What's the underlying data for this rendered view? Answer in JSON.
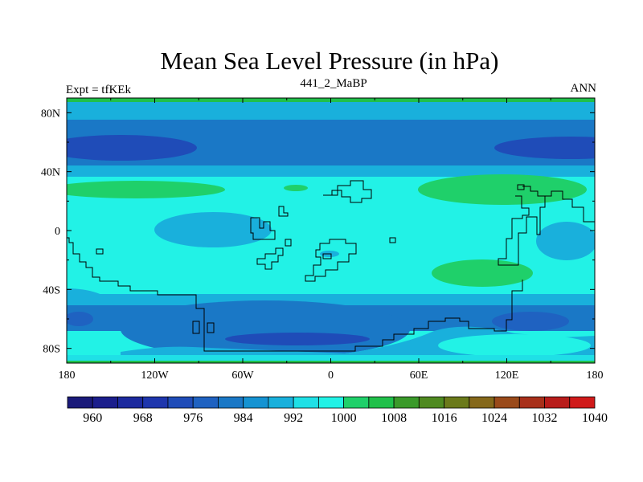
{
  "chart_data": {
    "type": "heatmap",
    "title": "Mean Sea Level Pressure (in hPa)",
    "subtitle_left": "Expt = tfKEk",
    "subtitle_center": "441_2_MaBP",
    "subtitle_right": "ANN",
    "x_ticks": [
      "180",
      "120W",
      "60W",
      "0",
      "60E",
      "120E",
      "180"
    ],
    "x_values": [
      -180,
      -120,
      -60,
      0,
      60,
      120,
      180
    ],
    "y_ticks": [
      "80N",
      "40N",
      "0",
      "40S",
      "80S"
    ],
    "y_values": [
      80,
      40,
      0,
      -40,
      -80
    ],
    "xlim": [
      -180,
      180
    ],
    "ylim": [
      -90,
      90
    ],
    "colorbar": {
      "labels": [
        "960",
        "968",
        "976",
        "984",
        "992",
        "1000",
        "1008",
        "1016",
        "1024",
        "1032",
        "1040"
      ],
      "label_levels": [
        960,
        968,
        976,
        984,
        992,
        1000,
        1008,
        1016,
        1024,
        1032,
        1040
      ],
      "levels": [
        960,
        964,
        968,
        972,
        976,
        980,
        984,
        988,
        992,
        996,
        1000,
        1004,
        1008,
        1012,
        1016,
        1020,
        1024,
        1028,
        1032,
        1036,
        1040
      ],
      "colors": [
        "#1a1a7a",
        "#1b1e8c",
        "#1c2a9e",
        "#1e36ad",
        "#1f4cb8",
        "#1f62c1",
        "#1a78c6",
        "#1593d2",
        "#19b0dc",
        "#1fe0e6",
        "#22f2e6",
        "#1fd06a",
        "#20c04a",
        "#3a9a2a",
        "#4f8a20",
        "#6b7a1a",
        "#85681a",
        "#9a4a1a",
        "#a8301a",
        "#b81c1a",
        "#d01a1a"
      ]
    }
  }
}
